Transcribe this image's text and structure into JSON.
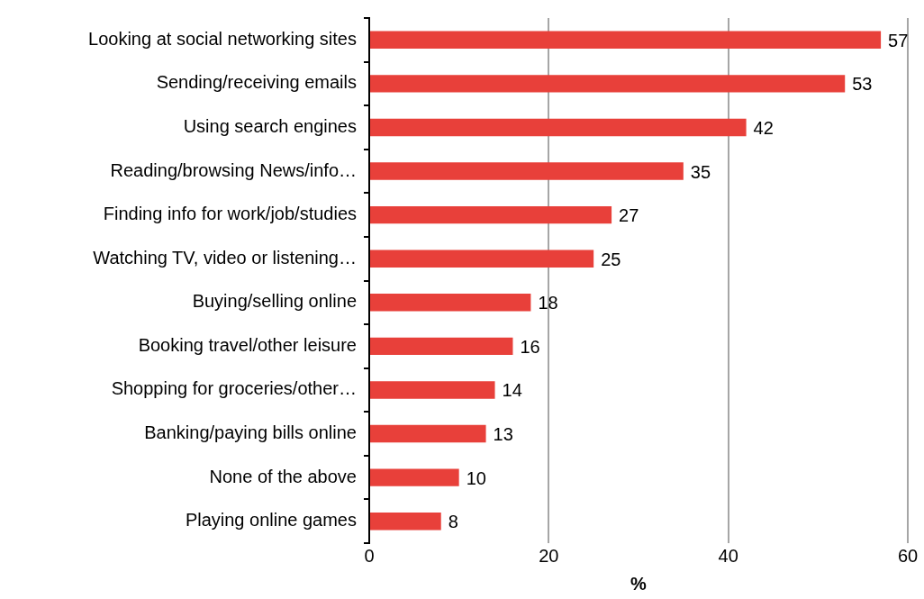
{
  "chart_data": {
    "type": "bar",
    "orientation": "horizontal",
    "xlabel": "%",
    "categories": [
      "Looking at social networking sites",
      "Sending/receiving emails",
      "Using search engines",
      "Reading/browsing News/info…",
      "Finding info for work/job/studies",
      "Watching TV, video or listening…",
      "Buying/selling online",
      "Booking travel/other leisure",
      "Shopping for groceries/other…",
      "Banking/paying bills online",
      "None of the above",
      "Playing online games"
    ],
    "values": [
      57,
      53,
      42,
      35,
      27,
      25,
      18,
      16,
      14,
      13,
      10,
      8
    ],
    "color": "#e8403a",
    "xlim": [
      0,
      60
    ],
    "xticks": [
      0,
      20,
      40,
      60
    ],
    "grid": "x",
    "legend": false,
    "data_labels": true
  }
}
